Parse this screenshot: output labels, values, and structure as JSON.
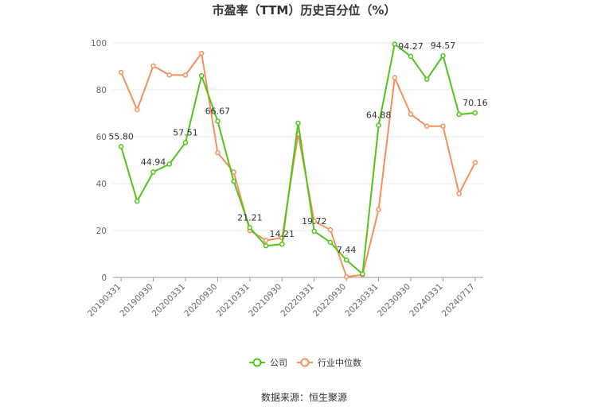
{
  "chart_data": {
    "type": "line",
    "title": "市盈率（TTM）历史百分位（%）",
    "source": "数据来源：恒生聚源",
    "ylim": [
      0,
      100
    ],
    "y_ticks": [
      "0",
      "20",
      "40",
      "60",
      "80",
      "100"
    ],
    "x_tick_labels": [
      "20190331",
      "20190930",
      "20200331",
      "20200930",
      "20210331",
      "20210930",
      "20220331",
      "20220930",
      "20230331",
      "20230930",
      "20240331",
      "20240717"
    ],
    "x_count": 23,
    "grid": "horizontal",
    "legend_position": "bottom",
    "colors": {
      "company": "#52c41a",
      "industry": "#f5905c",
      "axis": "#999999",
      "grid": "#e8e8e8"
    },
    "series": [
      {
        "name": "公司",
        "values": [
          55.8,
          32.5,
          44.94,
          48.3,
          57.51,
          86.0,
          66.67,
          41.0,
          21.21,
          13.5,
          14.21,
          65.8,
          19.72,
          15.0,
          7.44,
          1.5,
          64.88,
          99.5,
          94.27,
          84.5,
          94.57,
          69.5,
          70.16
        ],
        "labels": {
          "0": "55.80",
          "2": "44.94",
          "4": "57.51",
          "6": "66.67",
          "8": "21.21",
          "10": "14.21",
          "12": "19.72",
          "14": "7.44",
          "16": "64.88",
          "18": "94.27",
          "20": "94.57",
          "22": "70.16"
        }
      },
      {
        "name": "行业中位数",
        "values": [
          87.5,
          71.5,
          90.2,
          86.3,
          86.3,
          95.6,
          53.2,
          44.9,
          20.0,
          15.8,
          16.9,
          61.2,
          24.0,
          20.3,
          0.3,
          1.1,
          29.0,
          85.2,
          69.6,
          64.5,
          64.5,
          35.8,
          49.0
        ]
      }
    ]
  }
}
